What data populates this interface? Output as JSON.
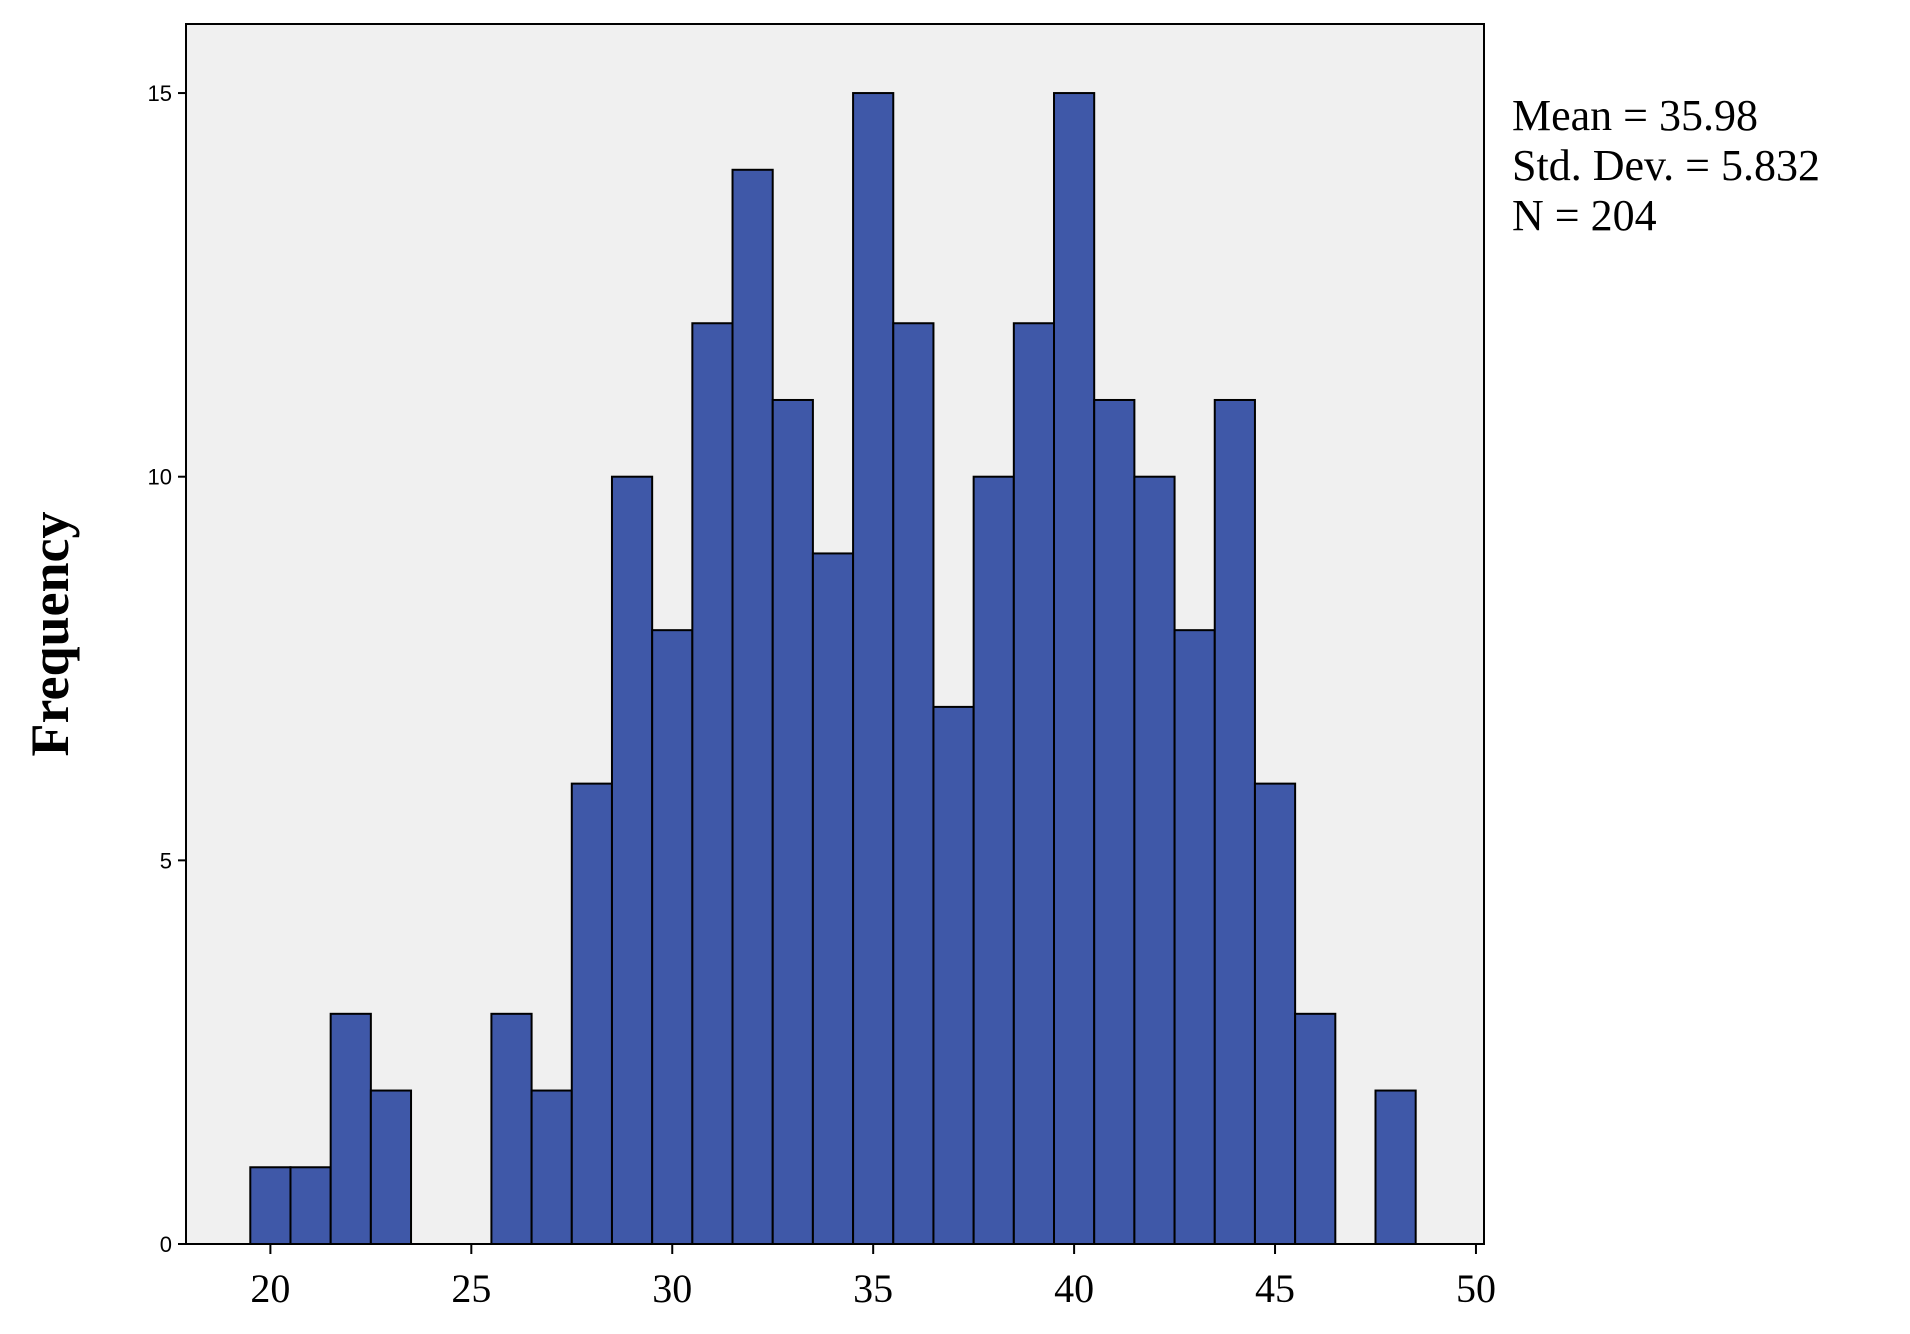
{
  "chart_data": {
    "type": "bar",
    "title": "",
    "xlabel": "",
    "ylabel": "Frequency",
    "bin_width": 1,
    "bin_starts": [
      19.5,
      20.5,
      21.5,
      22.5,
      23.5,
      24.5,
      25.5,
      26.5,
      27.5,
      28.5,
      29.5,
      30.5,
      31.5,
      32.5,
      33.5,
      34.5,
      35.5,
      36.5,
      37.5,
      38.5,
      39.5,
      40.5,
      41.5,
      42.5,
      43.5,
      44.5,
      45.5,
      46.5,
      47.5
    ],
    "values": [
      1,
      1,
      3,
      2,
      0,
      0,
      3,
      2,
      6,
      10,
      8,
      12,
      14,
      11,
      9,
      15,
      12,
      7,
      10,
      12,
      15,
      11,
      10,
      8,
      11,
      6,
      3,
      0,
      2
    ],
    "xlim": [
      17.9,
      50.2
    ],
    "ylim": [
      0,
      15.9
    ],
    "xticks": [
      "20",
      "25",
      "30",
      "35",
      "40",
      "45",
      "50"
    ],
    "yticks": [
      "0",
      "5",
      "10",
      "15"
    ],
    "grid": false,
    "colors": {
      "bar_fill": "#3f58a8",
      "bar_stroke": "#000000",
      "plot_background": "#f0f0f0"
    },
    "stats": [
      "Mean = 35.98",
      "Std. Dev. = 5.832",
      "N = 204"
    ]
  }
}
